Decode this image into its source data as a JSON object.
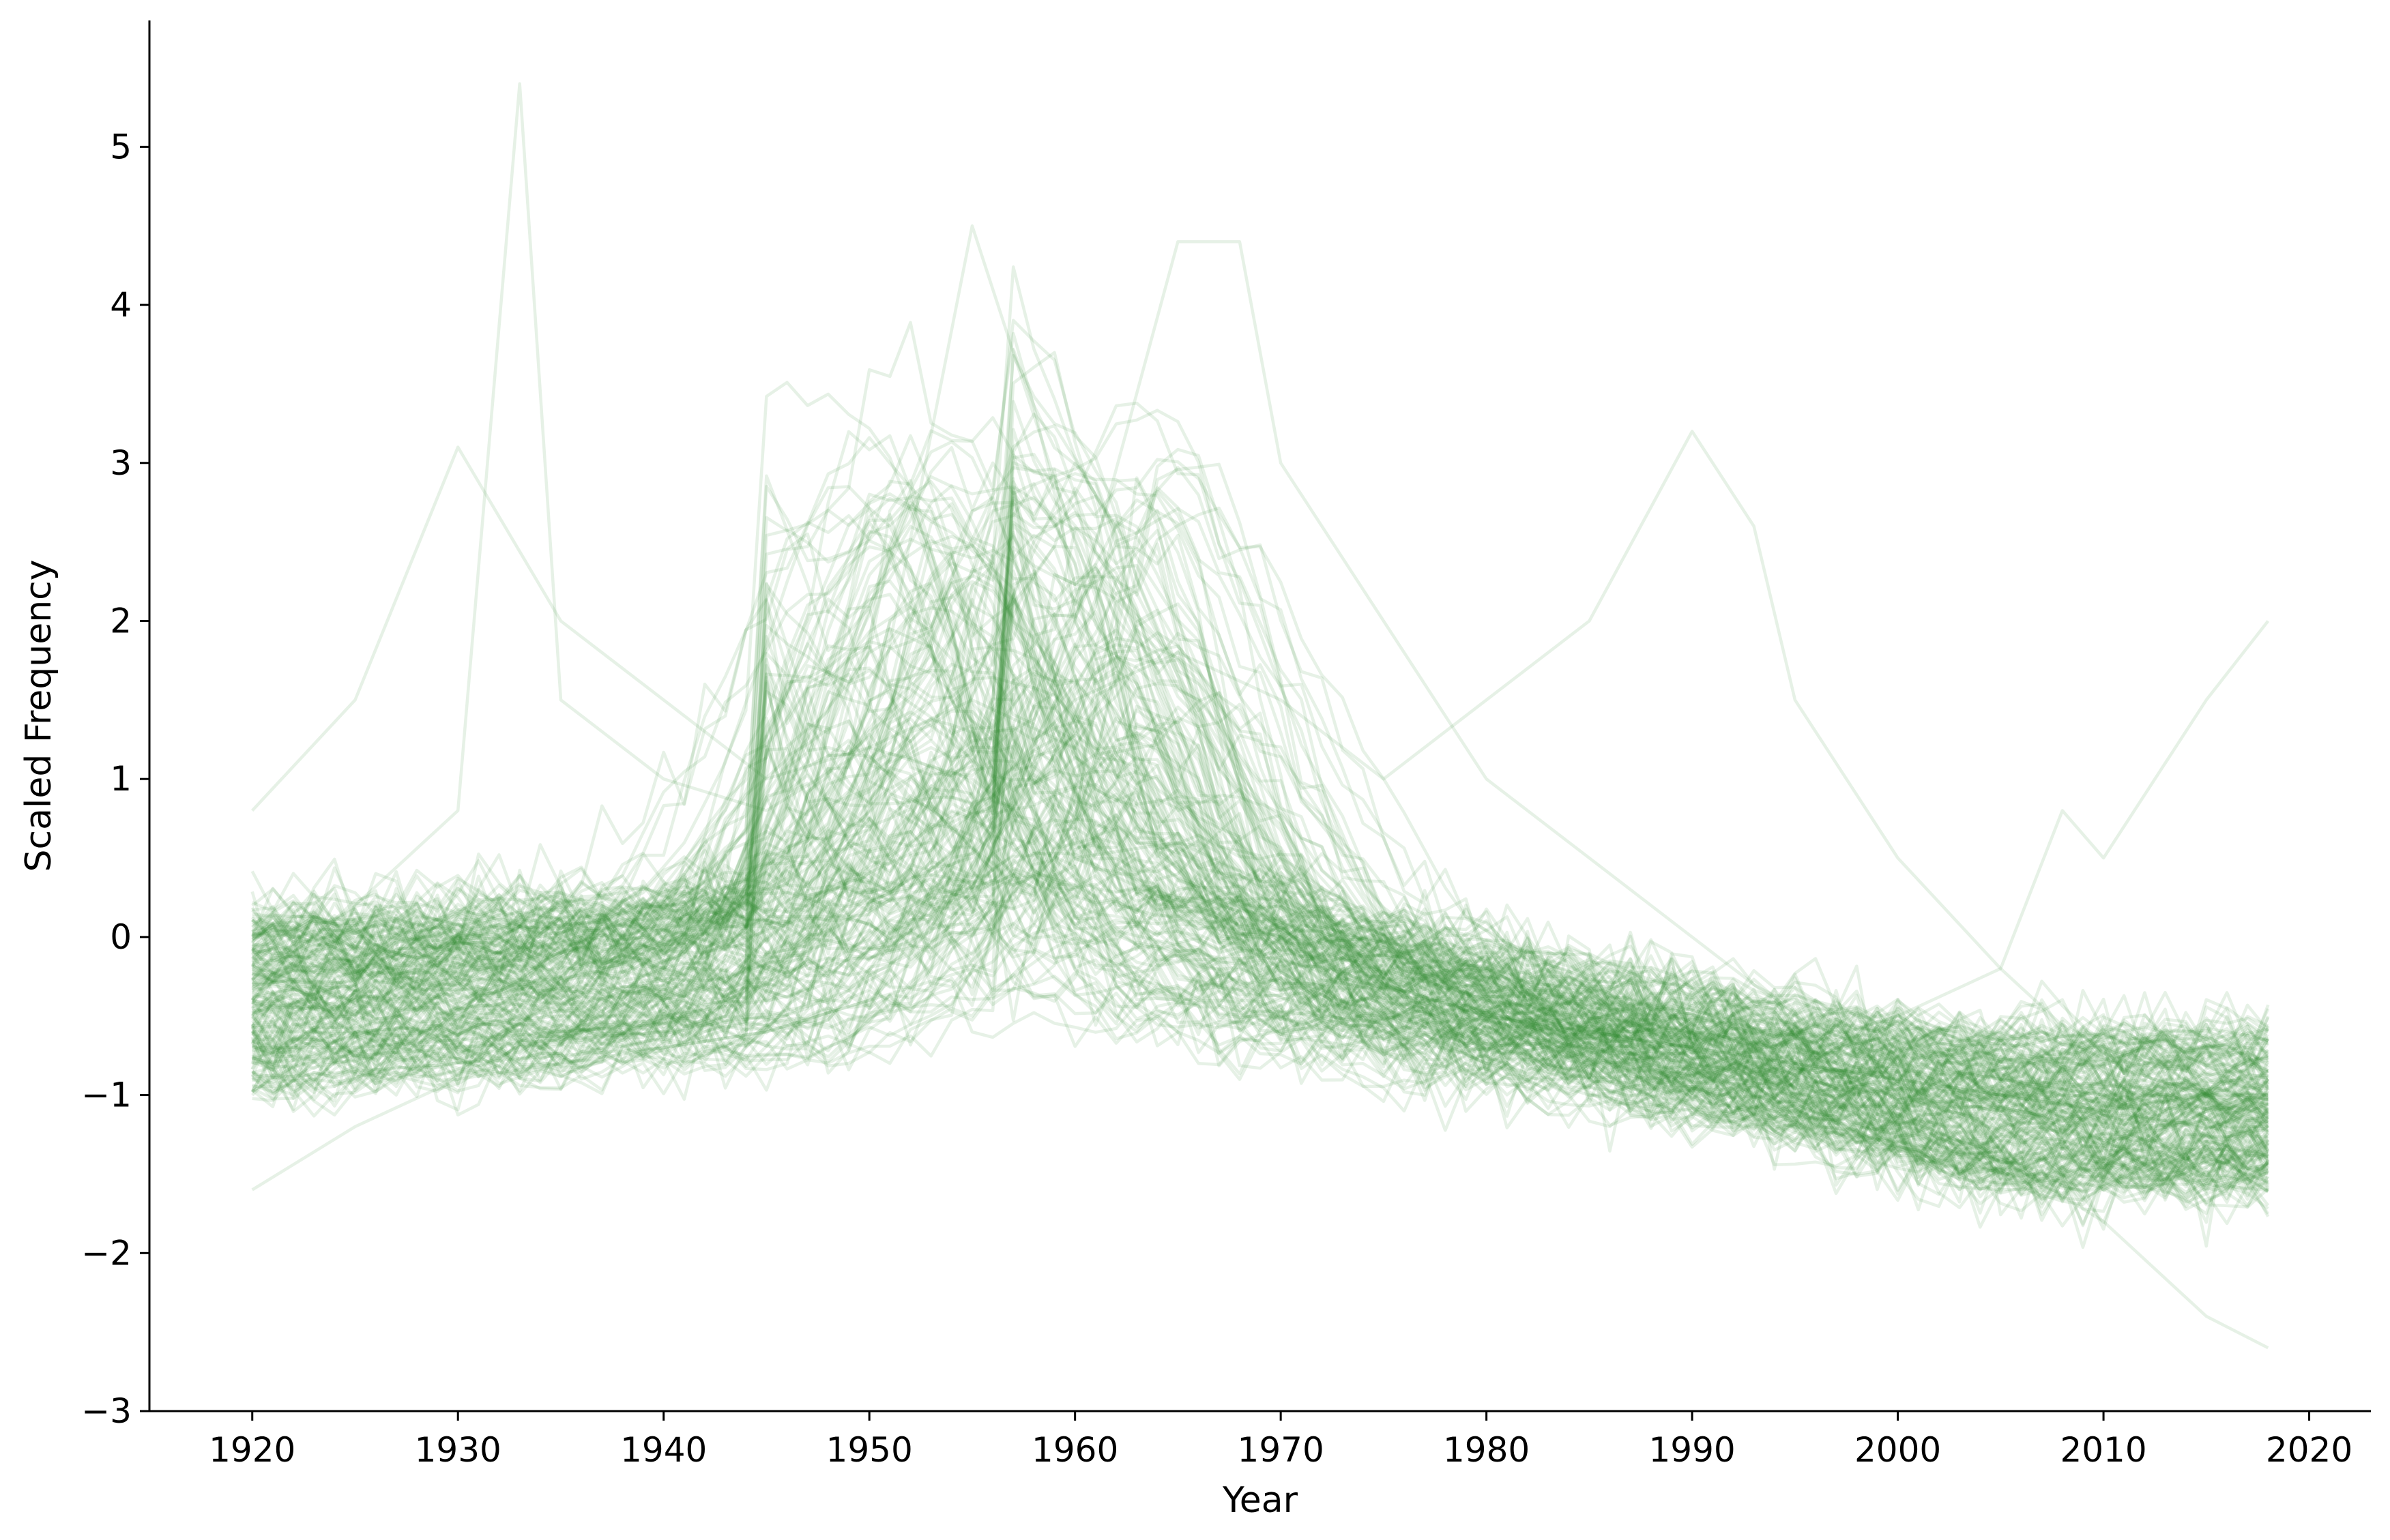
{
  "chart_data": {
    "type": "line",
    "title": "",
    "xlabel": "Year",
    "ylabel": "Scaled Frequency",
    "xlim": [
      1915,
      2023
    ],
    "ylim": [
      -3,
      5.8
    ],
    "xticks": [
      1920,
      1930,
      1940,
      1950,
      1960,
      1970,
      1980,
      1990,
      2000,
      2010,
      2020
    ],
    "yticks": [
      -3,
      -2,
      -1,
      0,
      1,
      2,
      3,
      4,
      5
    ],
    "ytick_labels": [
      "−3",
      "−2",
      "−1",
      "0",
      "1",
      "2",
      "3",
      "4",
      "5"
    ],
    "grid": false,
    "legend": "none",
    "line_color": "#2e8b2e",
    "line_opacity": 0.12,
    "x_start": 1920,
    "x_end": 2018,
    "series_count": 200,
    "series": [
      {
        "x": [
          1920,
          1925,
          1930,
          1935,
          1940,
          1945,
          1950,
          1955,
          1960,
          1965,
          1970,
          1975,
          1980,
          1985,
          1990,
          1995,
          2000,
          2005,
          2010,
          2015,
          2018
        ],
        "values": [
          -0.8,
          -0.75,
          -0.7,
          -0.65,
          -0.6,
          -0.5,
          1.0,
          1.6,
          3.0,
          2.0,
          0.5,
          -0.3,
          -0.5,
          -0.6,
          -0.7,
          -0.8,
          -0.9,
          -1.0,
          -1.1,
          -1.2,
          -1.2
        ]
      },
      {
        "x": [
          1920,
          1925,
          1930,
          1933,
          1935,
          1940,
          1945,
          1950,
          1955,
          1960,
          1965,
          1970,
          1975,
          1980,
          1985,
          1990,
          1995,
          2000,
          2005,
          2010,
          2015,
          2018
        ],
        "values": [
          -0.3,
          0.2,
          0.8,
          5.4,
          1.5,
          1.0,
          0.8,
          1.2,
          1.5,
          1.2,
          0.5,
          0.0,
          -0.4,
          -0.6,
          -0.7,
          -0.8,
          -0.9,
          -1.0,
          -1.1,
          -1.2,
          -1.4,
          -1.5
        ]
      },
      {
        "x": [
          1920,
          1925,
          1930,
          1935,
          1940,
          1945,
          1950,
          1955,
          1960,
          1965,
          1970,
          1975,
          1980,
          1985,
          1990,
          1995,
          2000,
          2005,
          2010,
          2015,
          2018
        ],
        "values": [
          -0.7,
          -0.7,
          -0.65,
          -0.6,
          -0.55,
          -0.3,
          1.2,
          4.5,
          2.5,
          1.0,
          0.2,
          -0.3,
          -0.5,
          -0.6,
          -0.7,
          -0.8,
          -0.9,
          -1.0,
          -1.1,
          -1.0,
          -1.0
        ]
      },
      {
        "x": [
          1920,
          1925,
          1930,
          1935,
          1940,
          1945,
          1950,
          1955,
          1960,
          1965,
          1968,
          1970,
          1975,
          1980,
          1985,
          1990,
          1995,
          2000,
          2005,
          2010,
          2015,
          2018
        ],
        "values": [
          -0.9,
          -0.85,
          -0.8,
          -0.75,
          -0.7,
          -0.6,
          -0.4,
          0.2,
          2.0,
          4.4,
          4.4,
          3.0,
          2.0,
          1.0,
          0.5,
          0.0,
          -0.5,
          -0.8,
          -0.9,
          -1.0,
          -1.0,
          -1.0
        ]
      },
      {
        "x": [
          1920,
          1925,
          1930,
          1935,
          1940,
          1945,
          1950,
          1955,
          1960,
          1965,
          1970,
          1975,
          1980,
          1985,
          1990,
          1993,
          1995,
          2000,
          2005,
          2010,
          2015,
          2018
        ],
        "values": [
          -0.6,
          -0.6,
          -0.55,
          -0.5,
          -0.5,
          -0.4,
          0.0,
          0.8,
          1.5,
          1.8,
          1.5,
          1.0,
          1.5,
          2.0,
          3.2,
          2.6,
          1.5,
          0.5,
          -0.2,
          -0.8,
          -1.0,
          -1.2
        ]
      },
      {
        "x": [
          1920,
          1925,
          1930,
          1935,
          1940,
          1945,
          1950,
          1955,
          1960,
          1965,
          1970,
          1975,
          1980,
          1985,
          1990,
          1995,
          2000,
          2005,
          2008,
          2010,
          2015,
          2018
        ],
        "values": [
          -1.6,
          -1.2,
          -0.9,
          -0.8,
          -0.7,
          -0.6,
          -0.4,
          -0.2,
          0.5,
          0.6,
          0.3,
          -0.2,
          -0.4,
          -0.5,
          -0.6,
          -0.7,
          -0.5,
          -0.2,
          0.8,
          0.5,
          1.5,
          2.0
        ]
      },
      {
        "x": [
          1920,
          1925,
          1930,
          1935,
          1940,
          1945,
          1950,
          1955,
          1960,
          1965,
          1970,
          1975,
          1980,
          1985,
          1990,
          1995,
          2000,
          2005,
          2010,
          2015,
          2018
        ],
        "values": [
          0.8,
          1.5,
          3.1,
          2.0,
          1.5,
          1.0,
          1.2,
          1.0,
          0.5,
          0.2,
          0.0,
          -0.5,
          -0.8,
          -1.0,
          -1.1,
          -1.2,
          -1.3,
          -1.4,
          -1.8,
          -2.4,
          -2.6
        ]
      }
    ]
  }
}
